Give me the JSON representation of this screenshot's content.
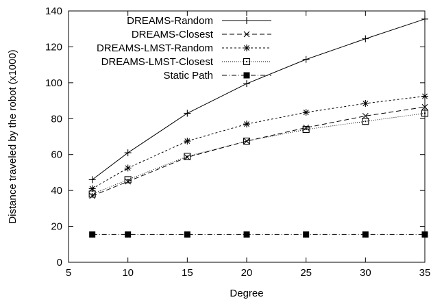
{
  "chart_data": {
    "type": "line",
    "xlabel": "Degree",
    "ylabel": "Distance traveled by the robot (x1000)",
    "x": [
      7,
      10,
      15,
      20,
      25,
      30,
      35
    ],
    "xlim": [
      5,
      35
    ],
    "ylim": [
      0,
      140
    ],
    "xticks": [
      "5",
      "10",
      "15",
      "20",
      "25",
      "30",
      "35"
    ],
    "yticks": [
      "0",
      "20",
      "40",
      "60",
      "80",
      "100",
      "120",
      "140"
    ],
    "grid": false,
    "legend_position": "top-left",
    "series": [
      {
        "name": "DREAMS-Random",
        "marker": "plus",
        "dash": "solid",
        "values": [
          46,
          61,
          83,
          99.5,
          113,
          124.5,
          135.5
        ]
      },
      {
        "name": "DREAMS-Closest",
        "marker": "cross",
        "dash": "dashed",
        "values": [
          37,
          45,
          58.5,
          67.5,
          75,
          81.5,
          86.5
        ]
      },
      {
        "name": "DREAMS-LMST-Random",
        "marker": "asterisk",
        "dash": "short-dashed",
        "values": [
          41,
          52.5,
          67.5,
          77,
          83.5,
          88.5,
          92.5
        ]
      },
      {
        "name": "DREAMS-LMST-Closest",
        "marker": "boxed-dot",
        "dash": "dotted",
        "values": [
          38,
          46,
          59,
          67.5,
          74,
          78.5,
          83
        ]
      },
      {
        "name": "Static Path",
        "marker": "filled-square",
        "dash": "dash-dot",
        "values": [
          15.5,
          15.5,
          15.5,
          15.5,
          15.5,
          15.5,
          15.5
        ]
      }
    ]
  }
}
